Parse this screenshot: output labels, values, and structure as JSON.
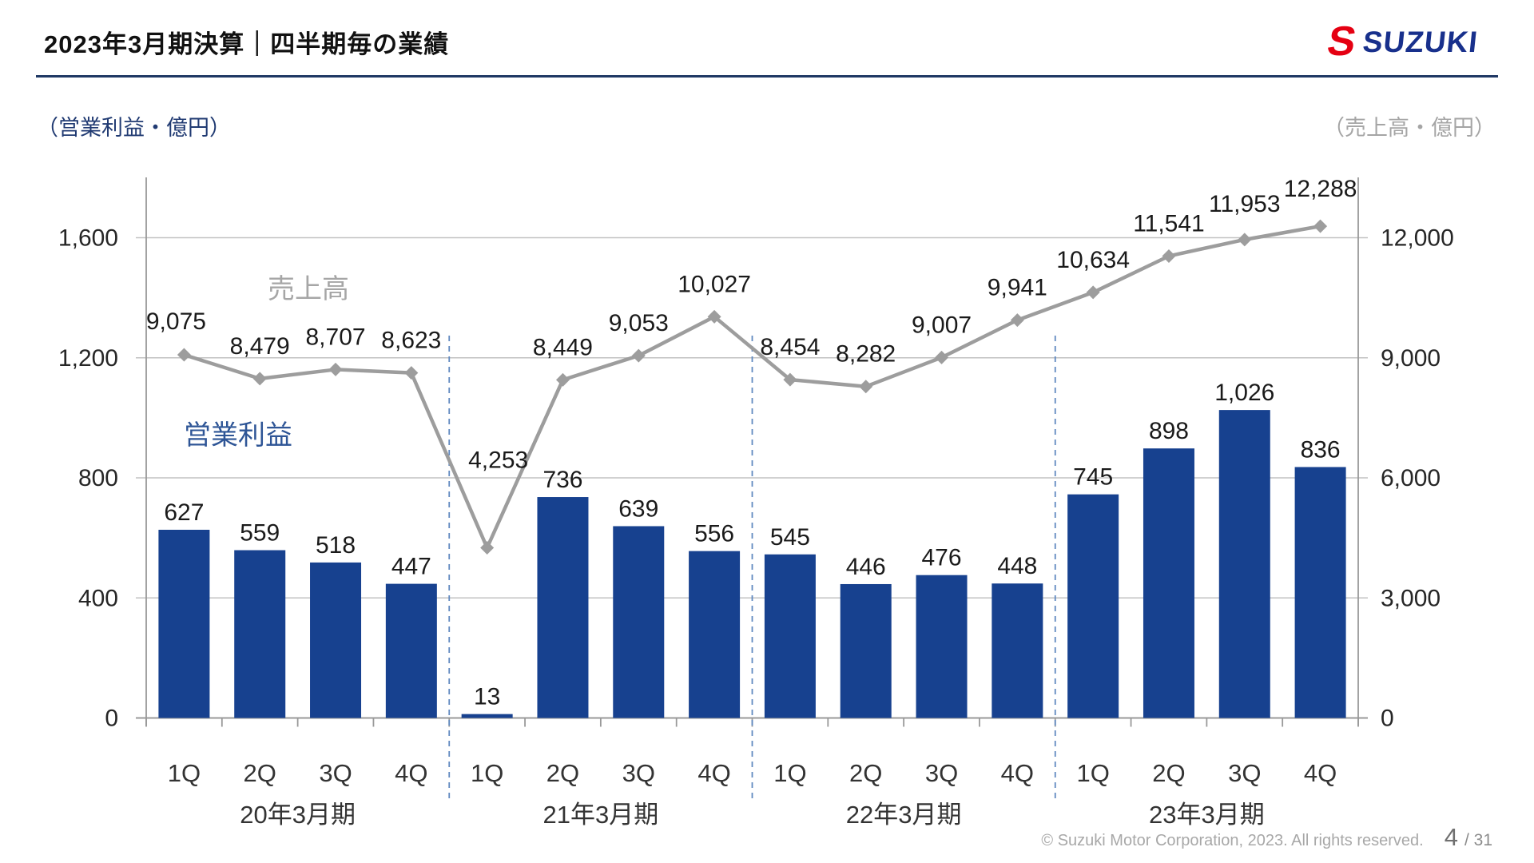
{
  "header": {
    "title": "2023年3月期決算｜四半期毎の業績",
    "logo_mark": "S",
    "logo_text": "SUZUKI"
  },
  "chart_data": {
    "type": "bar+line combo",
    "title": "四半期毎の業績（売上高・営業利益）",
    "categories": [
      "1Q",
      "2Q",
      "3Q",
      "4Q",
      "1Q",
      "2Q",
      "3Q",
      "4Q",
      "1Q",
      "2Q",
      "3Q",
      "4Q",
      "1Q",
      "2Q",
      "3Q",
      "4Q"
    ],
    "fiscal_year_groups": [
      "20年3月期",
      "21年3月期",
      "22年3月期",
      "23年3月期"
    ],
    "series": [
      {
        "name": "営業利益",
        "type": "bar",
        "axis": "left",
        "color": "#17418f",
        "name_label_color": "#2e5596",
        "values": [
          627,
          559,
          518,
          447,
          13,
          736,
          639,
          556,
          545,
          446,
          476,
          448,
          745,
          898,
          1026,
          836
        ],
        "labels": [
          "627",
          "559",
          "518",
          "447",
          "13",
          "736",
          "639",
          "556",
          "545",
          "446",
          "476",
          "448",
          "745",
          "898",
          "1,026",
          "836"
        ]
      },
      {
        "name": "売上高",
        "type": "line",
        "axis": "right",
        "color": "#9d9d9d",
        "name_label_color": "#a6a6a6",
        "values": [
          9075,
          8479,
          8707,
          8623,
          4253,
          8449,
          9053,
          10027,
          8454,
          8282,
          9007,
          9941,
          10634,
          11541,
          11953,
          12288
        ],
        "labels": [
          "9,075",
          "8,479",
          "8,707",
          "8,623",
          "4,253",
          "8,449",
          "9,053",
          "10,027",
          "8,454",
          "8,282",
          "9,007",
          "9,941",
          "10,634",
          "11,541",
          "11,953",
          "12,288"
        ]
      }
    ],
    "left_axis": {
      "title": "（営業利益・億円）",
      "max": 1600,
      "ticks": [
        {
          "v": 0,
          "label": "0"
        },
        {
          "v": 400,
          "label": "400"
        },
        {
          "v": 800,
          "label": "800"
        },
        {
          "v": 1200,
          "label": "1,200"
        },
        {
          "v": 1600,
          "label": "1,600"
        }
      ]
    },
    "right_axis": {
      "title": "（売上高・億円）",
      "max": 12000,
      "ticks": [
        {
          "v": 0,
          "label": "0"
        },
        {
          "v": 3000,
          "label": "3,000"
        },
        {
          "v": 6000,
          "label": "6,000"
        },
        {
          "v": 9000,
          "label": "9,000"
        },
        {
          "v": 12000,
          "label": "12,000"
        }
      ]
    },
    "grid": true,
    "legend_position": "inline series annotations",
    "colors": {
      "grid": "#c2c2c2",
      "axis": "#999999",
      "separator": "#6089c0"
    }
  },
  "footer": {
    "copyright": "© Suzuki Motor Corporation, 2023. All rights reserved.",
    "page": "4",
    "page_total": "/ 31"
  }
}
